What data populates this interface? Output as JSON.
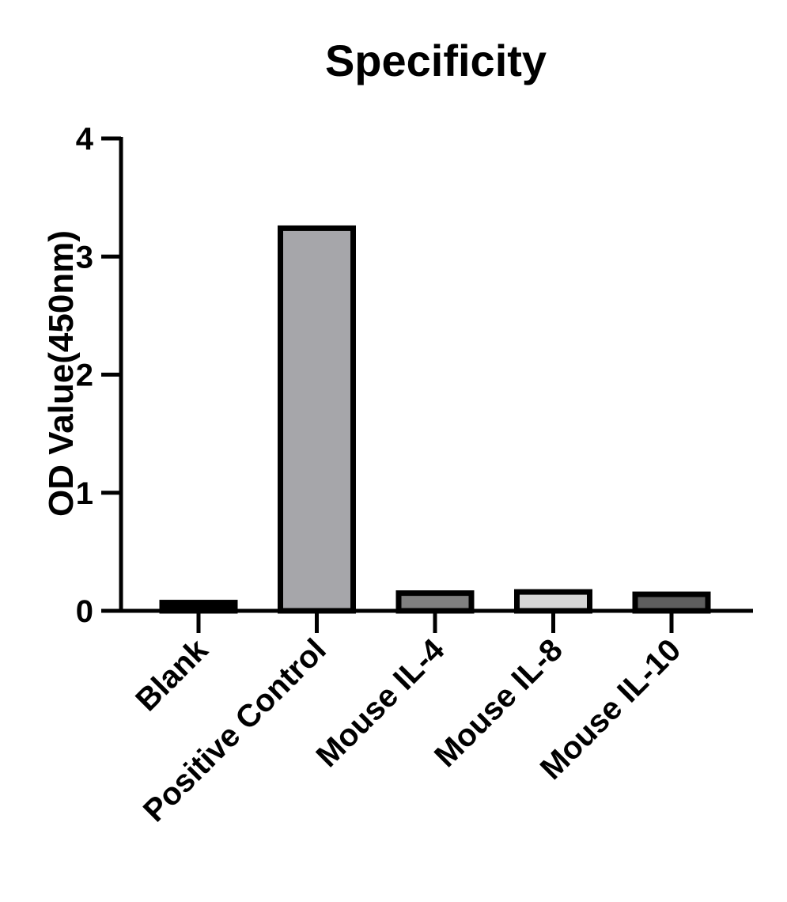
{
  "chart_data": {
    "type": "bar",
    "title": "Specificity",
    "xlabel": "",
    "ylabel": "OD Value(450nm)",
    "ylim": [
      0,
      4
    ],
    "yticks": [
      0,
      1,
      2,
      3,
      4
    ],
    "grid": false,
    "legend": "none",
    "categories": [
      "Blank",
      "Positive Control",
      "Mouse IL-4",
      "Mouse IL-8",
      "Mouse IL-10"
    ],
    "values": [
      0.07,
      3.24,
      0.15,
      0.16,
      0.14
    ],
    "colors": {
      "bar_fills": [
        "#000000",
        "#a6a6aa",
        "#808080",
        "#d6d6d6",
        "#5e5e5e"
      ],
      "outline": "#000000"
    }
  }
}
